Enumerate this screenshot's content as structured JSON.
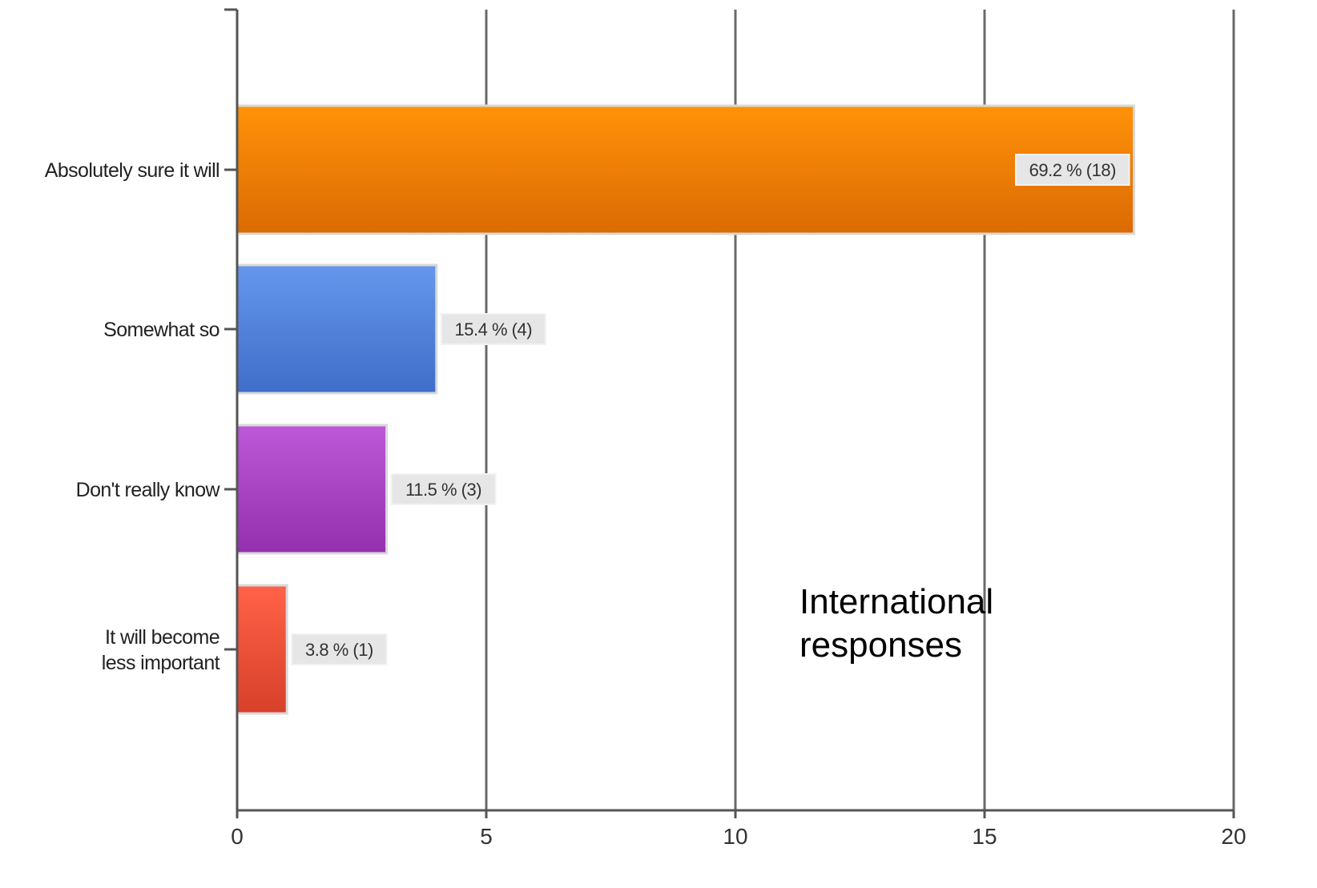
{
  "chart_data": {
    "type": "bar",
    "orientation": "horizontal",
    "title": "",
    "xlabel": "",
    "ylabel": "",
    "xlim": [
      0,
      20
    ],
    "x_ticks": [
      0,
      5,
      10,
      15,
      20
    ],
    "grid": "vertical",
    "legend": "none",
    "categories": [
      [
        "Absolutely sure it will"
      ],
      [
        "Somewhat so"
      ],
      [
        "Don't really know"
      ],
      [
        "It will become",
        "less important"
      ]
    ],
    "values": [
      18,
      4,
      3,
      1
    ],
    "data_labels": [
      "69.2 % (18)",
      "15.4 % (4)",
      "11.5 % (3)",
      "3.8 % (1)"
    ],
    "colors": [
      [
        "#ff9208",
        "#db6a04"
      ],
      [
        "#6497ec",
        "#3f6ec8"
      ],
      [
        "#bd58d8",
        "#9430ae"
      ],
      [
        "#ff6248",
        "#d8402a"
      ]
    ],
    "annotation": [
      "International",
      "responses"
    ]
  }
}
